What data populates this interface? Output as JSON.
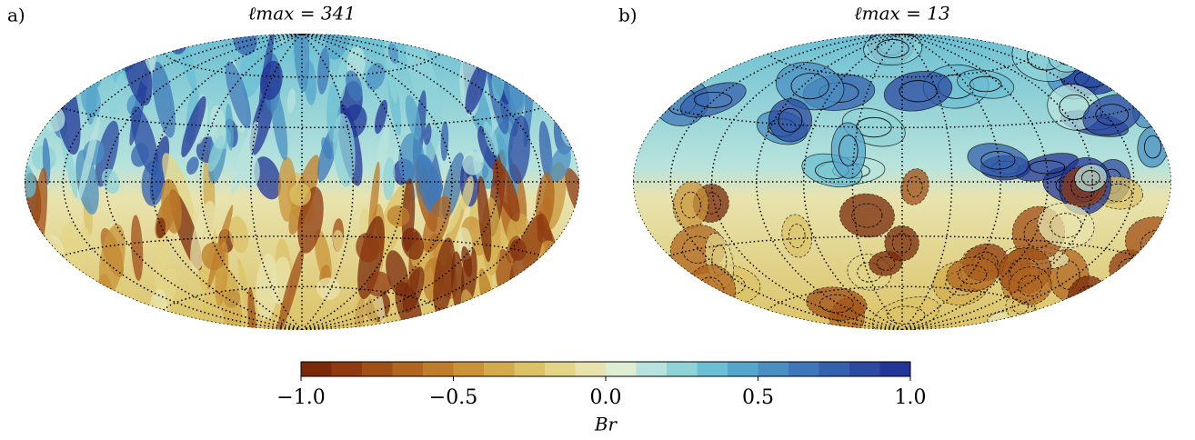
{
  "chart_data": [
    {
      "type": "map",
      "panel": "a)",
      "title": "ℓmax = 341"
    },
    {
      "type": "map",
      "panel": "b)",
      "title": "ℓmax = 13"
    },
    {
      "type": "colorbar",
      "label": "Br",
      "xlim": [
        -1,
        1
      ],
      "xticks": [
        {
          "value": -1,
          "label": "−1.0"
        },
        {
          "value": -0.5,
          "label": "−0.5"
        },
        {
          "value": 0,
          "label": "0.0"
        },
        {
          "value": 0.5,
          "label": "0.5"
        },
        {
          "value": 1,
          "label": "1.0"
        }
      ],
      "colors": [
        "#7a2a0a",
        "#8f3a10",
        "#a04f17",
        "#b0661f",
        "#bd7d2a",
        "#c99439",
        "#d2ab4c",
        "#dbc266",
        "#e3d588",
        "#e8e3ae",
        "#dcefd0",
        "#b8e3dc",
        "#8fd3d8",
        "#6bbfd3",
        "#55a6cb",
        "#4a8fc2",
        "#3f78b8",
        "#3461ad",
        "#2b4aa0",
        "#213696"
      ]
    }
  ]
}
